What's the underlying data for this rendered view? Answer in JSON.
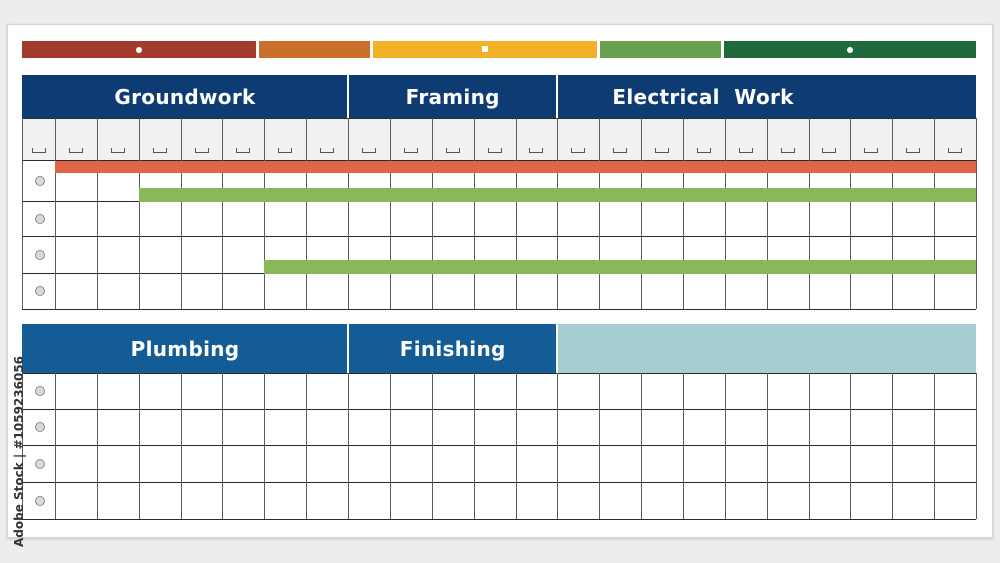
{
  "legend": {
    "segments": [
      {
        "color": "#a23a2e",
        "marker": "dot"
      },
      {
        "color": "#cc6e2c",
        "marker": "none"
      },
      {
        "color": "#f2b127",
        "marker": "square"
      },
      {
        "color": "#6ba050",
        "marker": "none"
      },
      {
        "color": "#1f6a3c",
        "marker": "dot"
      }
    ]
  },
  "top_section": {
    "phases": [
      {
        "label": "Groundwork",
        "span_columns": 7
      },
      {
        "label": "Framing",
        "span_columns": 5
      },
      {
        "label": "Electrical  Work",
        "span_columns": 10
      }
    ],
    "color": "#0e3c72",
    "row_count": 4,
    "bars": [
      {
        "row": 0,
        "start_column": 0,
        "end_column": 22,
        "color": "#df6547"
      },
      {
        "row": 1,
        "start_column": 2,
        "end_column": 22,
        "color": "#88b85a"
      },
      {
        "row": 3,
        "start_column": 5,
        "end_column": 22,
        "color": "#88b85a"
      }
    ]
  },
  "bottom_section": {
    "phases": [
      {
        "label": "Plumbing",
        "span_columns": 7,
        "color": "#135c96"
      },
      {
        "label": "Finishing",
        "span_columns": 5,
        "color": "#135c96"
      },
      {
        "label": "",
        "span_columns": 10,
        "color": "#a6cdd1"
      }
    ],
    "row_count": 4
  },
  "column_count": 22,
  "watermark_text": "Adobe Stock | #1059236056"
}
